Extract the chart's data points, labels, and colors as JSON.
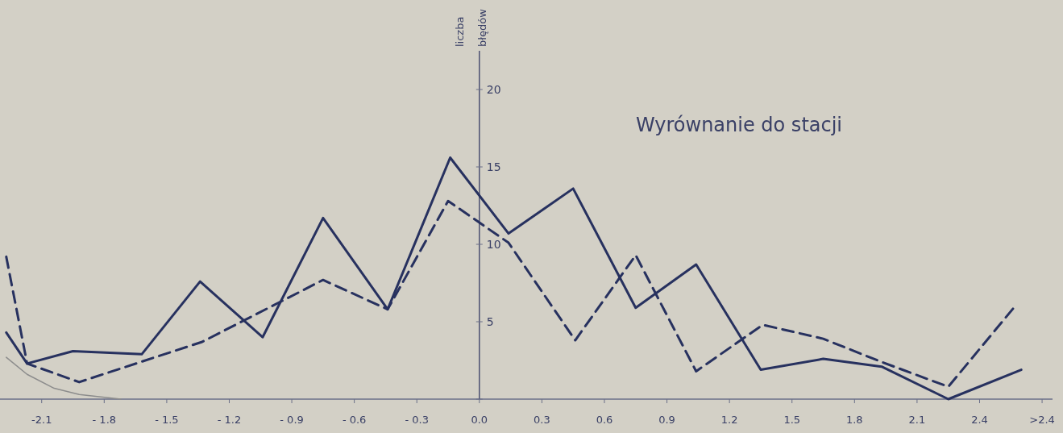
{
  "chart_data": {
    "type": "line",
    "title": "Wyrównanie do stacji",
    "ylabel": "liczba błędów",
    "xlim": [
      -2.3,
      2.75
    ],
    "ylim": [
      0,
      22.5
    ],
    "xticks": [
      {
        "value": -2.1,
        "label": "-2.1"
      },
      {
        "value": -1.8,
        "label": "- 1.8"
      },
      {
        "value": -1.5,
        "label": "- 1.5"
      },
      {
        "value": -1.2,
        "label": "- 1.2"
      },
      {
        "value": -0.9,
        "label": "- 0.9"
      },
      {
        "value": -0.6,
        "label": "- 0.6"
      },
      {
        "value": -0.3,
        "label": "- 0.3"
      },
      {
        "value": 0,
        "label": "0.0"
      },
      {
        "value": 0.3,
        "label": "0.3"
      },
      {
        "value": 0.6,
        "label": "0.6"
      },
      {
        "value": 0.9,
        "label": "0.9"
      },
      {
        "value": 1.2,
        "label": "1.2"
      },
      {
        "value": 1.5,
        "label": "1.5"
      },
      {
        "value": 1.8,
        "label": "1.8"
      },
      {
        "value": 2.1,
        "label": "2.1"
      },
      {
        "value": 2.4,
        "label": "2.4"
      },
      {
        "value": 2.7,
        "label": ">2.4"
      }
    ],
    "yticks": [
      {
        "value": 0,
        "label": null
      },
      5,
      10,
      15,
      20
    ],
    "grid": false,
    "marker": "none",
    "series": [
      {
        "color": "#27315f",
        "line_style": "solid",
        "x": [
          -2.27,
          -2.17,
          -1.95,
          -1.62,
          -1.34,
          -1.04,
          -0.75,
          -0.44,
          -0.14,
          0.14,
          0.45,
          0.75,
          1.04,
          1.35,
          1.65,
          1.93,
          2.25,
          2.6
        ],
        "values": [
          4.3,
          2.3,
          3.1,
          2.9,
          7.6,
          4.0,
          11.7,
          5.8,
          15.6,
          10.7,
          13.6,
          5.9,
          8.7,
          1.9,
          2.6,
          2.1,
          0,
          1.9
        ]
      },
      {
        "color": "#27315f",
        "line_style": "dashed",
        "x": [
          -2.27,
          -2.17,
          -1.92,
          -1.33,
          -0.75,
          -0.44,
          -0.15,
          0.14,
          0.46,
          0.75,
          1.04,
          1.36,
          1.65,
          1.93,
          2.25,
          2.57
        ],
        "values": [
          9.2,
          2.3,
          1.1,
          3.7,
          7.7,
          5.8,
          12.8,
          10.1,
          3.8,
          9.3,
          1.8,
          4.8,
          3.9,
          2.4,
          0.8,
          6.0
        ]
      },
      {
        "color": "#8c8c8c",
        "line_style": "solid",
        "x": [
          -2.27,
          -2.17,
          -2.04,
          -1.92,
          -1.72
        ],
        "values": [
          2.7,
          1.6,
          0.7,
          0.3,
          0
        ]
      }
    ]
  }
}
